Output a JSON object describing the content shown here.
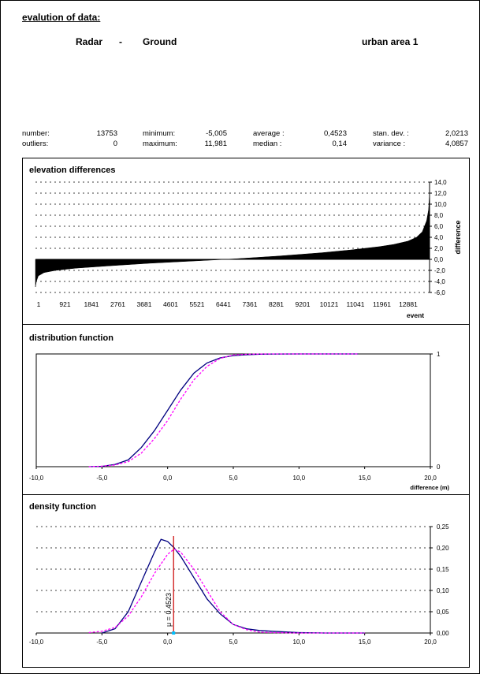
{
  "header": {
    "title": "evalution of data:",
    "source_a": "Radar",
    "separator": "-",
    "source_b": "Ground",
    "area": "urban area 1"
  },
  "stats": {
    "number_label": "number:",
    "number_value": "13753",
    "outliers_label": "outliers:",
    "outliers_value": "0",
    "minimum_label": "minimum:",
    "minimum_value": "-5,005",
    "maximum_label": "maximum:",
    "maximum_value": "11,981",
    "average_label": "average :",
    "average_value": "0,4523",
    "median_label": "median :",
    "median_value": "0,14",
    "stdev_label": "stan. dev. :",
    "stdev_value": "2,0213",
    "variance_label": "variance :",
    "variance_value": "4,0857"
  },
  "chart_data": [
    {
      "type": "area",
      "title": "elevation differences",
      "xlabel": "event",
      "ylabel": "difference",
      "x_ticks": [
        "1",
        "921",
        "1841",
        "2761",
        "3681",
        "4601",
        "5521",
        "6441",
        "7361",
        "8281",
        "9201",
        "10121",
        "11041",
        "11961",
        "12881"
      ],
      "y_ticks": [
        "14,0",
        "12,0",
        "10,0",
        "8,0",
        "6,0",
        "4,0",
        "2,0",
        "0,0",
        "-2,0",
        "-4,0",
        "-6,0"
      ],
      "ylim": [
        -6,
        14
      ],
      "xlim": [
        1,
        13753
      ],
      "grid": true,
      "series": [
        {
          "x": [
            1,
            30,
            100,
            300,
            700,
            1400,
            2500,
            4000,
            5500,
            7000,
            8500,
            10000,
            11000,
            12000,
            12500,
            13000,
            13300,
            13500,
            13650,
            13720,
            13753
          ],
          "values": [
            -5.0,
            -4.0,
            -3.0,
            -2.4,
            -2.0,
            -1.6,
            -1.2,
            -0.7,
            -0.3,
            0.1,
            0.6,
            1.2,
            1.7,
            2.3,
            2.7,
            3.3,
            4.0,
            5.0,
            7.0,
            9.0,
            12.0
          ]
        }
      ]
    },
    {
      "type": "line",
      "title": "distribution function",
      "xlabel": "difference (m)",
      "x_ticks": [
        "-10,0",
        "-5,0",
        "0,0",
        "5,0",
        "10,0",
        "15,0",
        "20,0"
      ],
      "y_ticks": [
        "1",
        "0"
      ],
      "xlim": [
        -10,
        20
      ],
      "ylim": [
        0,
        1
      ],
      "series": [
        {
          "x": [
            -6,
            -5,
            -4,
            -3,
            -2,
            -1,
            0,
            1,
            2,
            3,
            4,
            5,
            6,
            7,
            8,
            10,
            12,
            14.5
          ],
          "values": [
            0,
            0.003,
            0.02,
            0.06,
            0.17,
            0.32,
            0.5,
            0.68,
            0.83,
            0.92,
            0.965,
            0.985,
            0.993,
            0.997,
            0.999,
            1,
            1,
            1
          ]
        },
        {
          "x": [
            -6,
            -5,
            -4,
            -3,
            -2,
            -1,
            0,
            1,
            2,
            3,
            4,
            5,
            6,
            7,
            8,
            10,
            12,
            14.5
          ],
          "values": [
            0.0,
            0.004,
            0.015,
            0.045,
            0.12,
            0.25,
            0.41,
            0.6,
            0.77,
            0.89,
            0.96,
            0.99,
            0.997,
            0.999,
            1,
            1,
            1,
            1
          ]
        }
      ]
    },
    {
      "type": "line",
      "title": "density function",
      "x_ticks": [
        "-10,0",
        "-5,0",
        "0,0",
        "5,0",
        "10,0",
        "15,0",
        "20,0"
      ],
      "y_ticks": [
        "0,25",
        "0,20",
        "0,15",
        "0,10",
        "0,05",
        "0,00"
      ],
      "xlim": [
        -10,
        20
      ],
      "ylim": [
        0,
        0.25
      ],
      "grid": true,
      "annotation": {
        "x": 0.4523,
        "text": "μ = 0,4523"
      },
      "series": [
        {
          "x": [
            -5,
            -4,
            -3,
            -2,
            -1,
            -0.5,
            0,
            0.5,
            1,
            2,
            3,
            4,
            5,
            6,
            7,
            8,
            10,
            12,
            15
          ],
          "values": [
            0,
            0.01,
            0.05,
            0.12,
            0.19,
            0.22,
            0.215,
            0.2,
            0.18,
            0.13,
            0.08,
            0.045,
            0.02,
            0.01,
            0.006,
            0.004,
            0.001,
            0,
            0
          ]
        },
        {
          "x": [
            -6,
            -5,
            -4,
            -3,
            -2,
            -1,
            0,
            0.5,
            1,
            2,
            3,
            4,
            5,
            6,
            7,
            8,
            10,
            12,
            15
          ],
          "values": [
            0.001,
            0.004,
            0.013,
            0.04,
            0.085,
            0.14,
            0.185,
            0.197,
            0.19,
            0.15,
            0.1,
            0.05,
            0.02,
            0.008,
            0.002,
            0.001,
            0,
            0,
            0
          ]
        }
      ]
    }
  ],
  "colors": {
    "fill": "#000000",
    "solid": "#000080",
    "dashed": "#ff00ff",
    "marker": "#cc0000",
    "cyan": "#00c0ff"
  }
}
